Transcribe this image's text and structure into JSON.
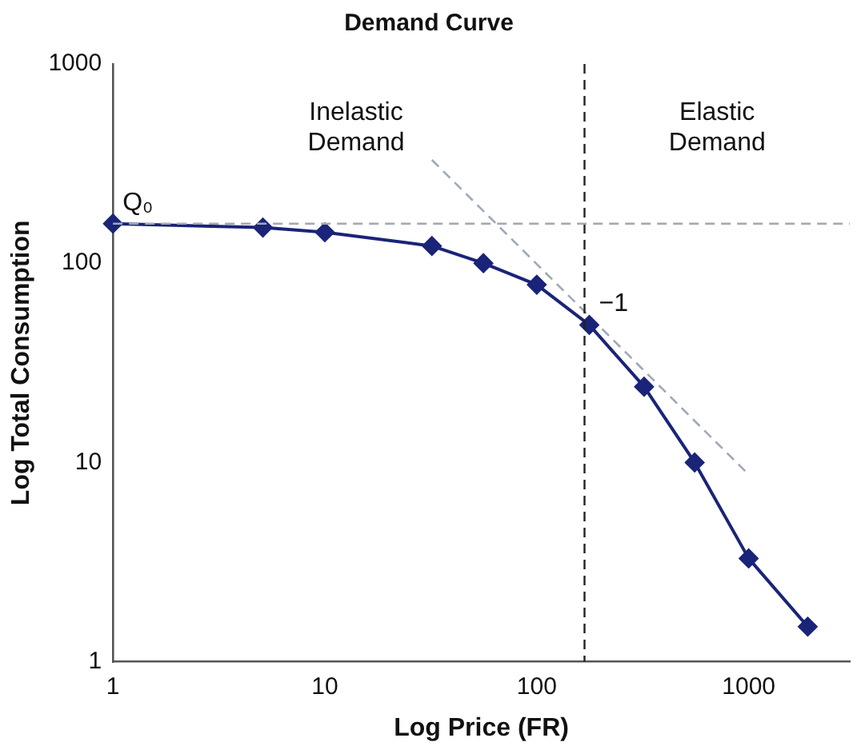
{
  "chart_data": {
    "type": "line",
    "title": "Demand Curve",
    "xlabel": "Log Price (FR)",
    "ylabel": "Log Total Consumption",
    "log": "xy",
    "xlim": [
      1,
      3000
    ],
    "ylim": [
      1,
      1000
    ],
    "xticks": [
      1,
      10,
      100,
      1000
    ],
    "yticks": [
      1,
      10,
      100,
      1000
    ],
    "grid": false,
    "legend": false,
    "marker": "diamond",
    "series": [
      {
        "color": "#1a2478",
        "x": [
          1,
          5.1,
          10,
          32,
          56,
          100,
          177,
          321,
          556,
          1000,
          1900
        ],
        "values": [
          158,
          151,
          143,
          122,
          100,
          78,
          49,
          24,
          10,
          3.3,
          1.5
        ]
      },
      {
        "type": "line",
        "color": "#a0a8b8",
        "line_style": "dashed",
        "marker": "none",
        "x": [
          32,
          1000
        ],
        "values": [
          330,
          8.7
        ]
      }
    ],
    "ref_lines": [
      {
        "axis": "x",
        "value": 168,
        "color": "#222222",
        "line_style": "dashed"
      },
      {
        "axis": "y",
        "value": 158,
        "color": "#a0a8b8",
        "line_style": "dashed"
      }
    ],
    "annotations": [
      {
        "text": "Q₀",
        "x": 1,
        "y": 158
      },
      {
        "text": "−1",
        "x": 177,
        "y": 49
      },
      "Inelastic\nDemand",
      "Elastic\nDemand"
    ]
  }
}
